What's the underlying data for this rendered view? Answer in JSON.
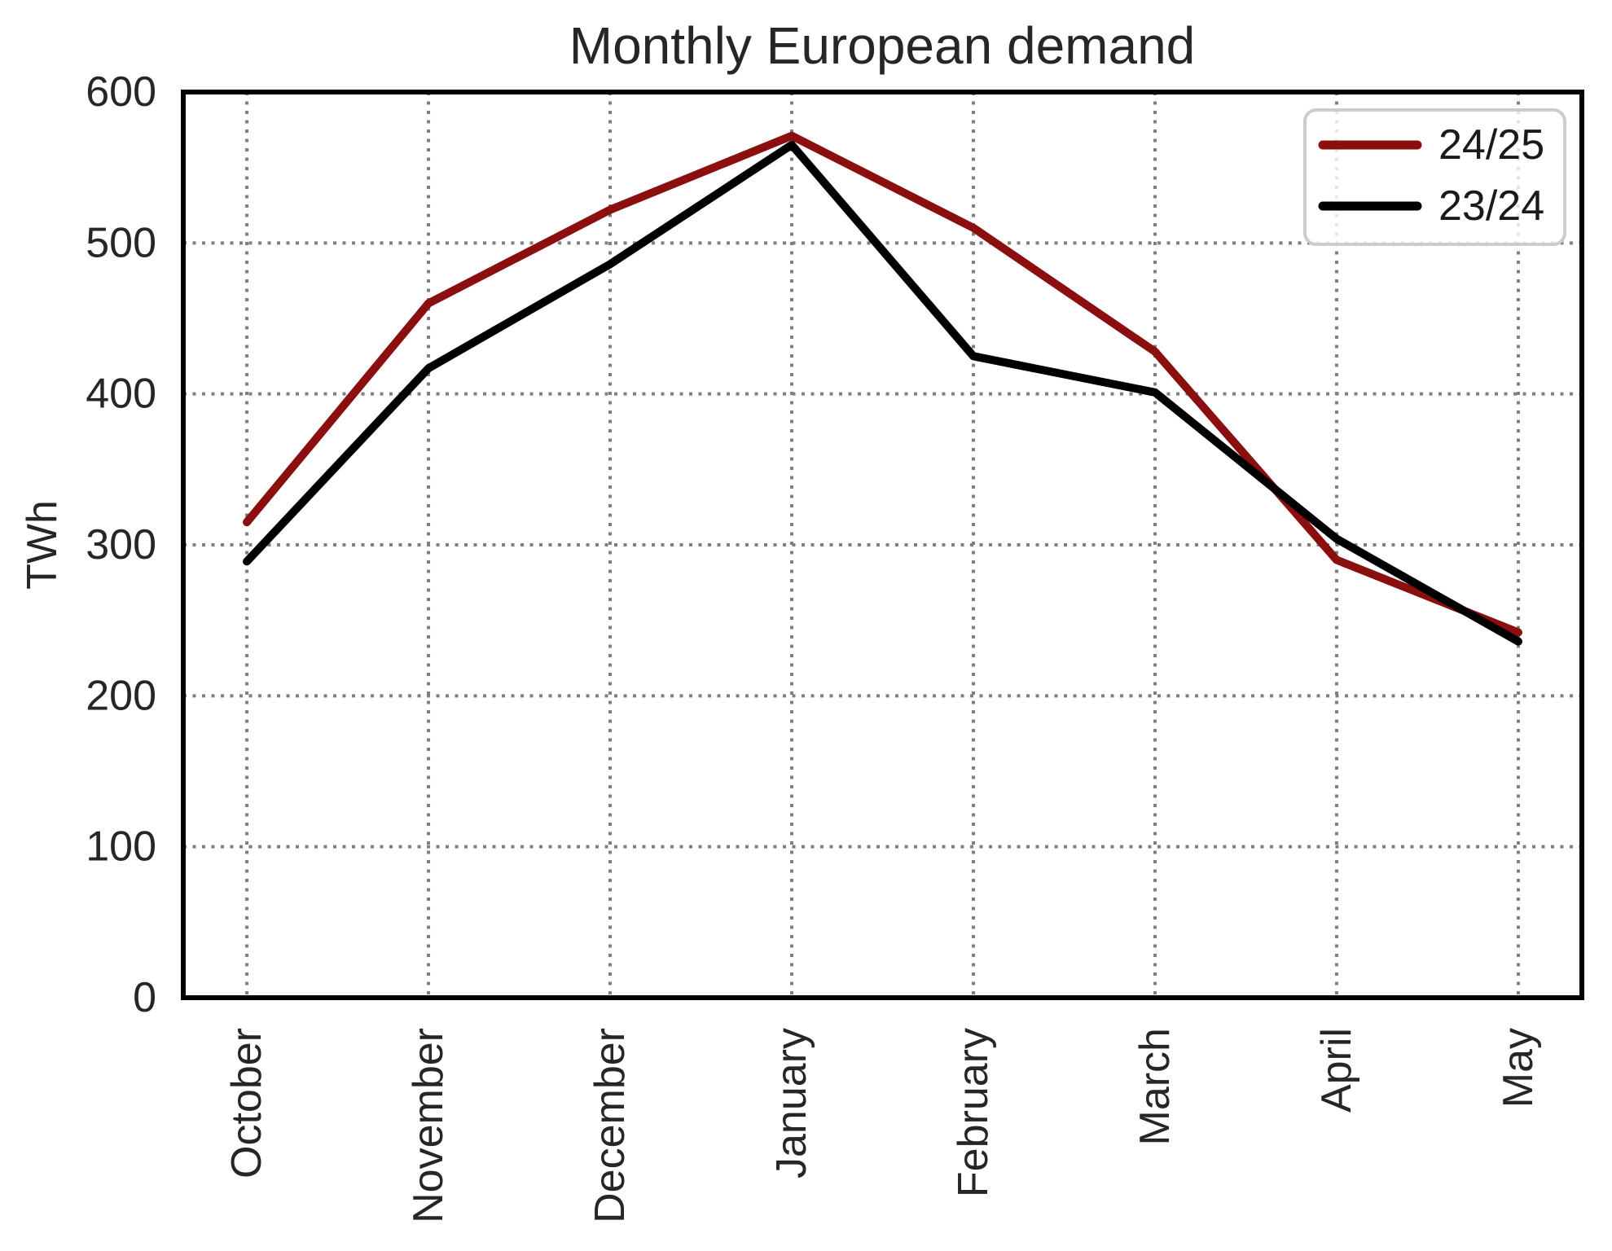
{
  "chart_data": {
    "type": "line",
    "title": "Monthly European demand",
    "xlabel": "",
    "ylabel": "TWh",
    "categories": [
      "October",
      "November",
      "December",
      "January",
      "February",
      "March",
      "April",
      "May"
    ],
    "series": [
      {
        "name": "24/25",
        "color": "#8B0F0F",
        "values": [
          315,
          460,
          522,
          571,
          510,
          428,
          290,
          242
        ]
      },
      {
        "name": "23/24",
        "color": "#000000",
        "values": [
          289,
          417,
          486,
          565,
          425,
          401,
          304,
          236
        ]
      }
    ],
    "ylim": [
      0,
      600
    ],
    "yticks": [
      0,
      100,
      200,
      300,
      400,
      500,
      600
    ],
    "grid": "dotted",
    "legend_position": "upper right",
    "x_tick_rotation_deg": 90
  },
  "colors": {
    "background": "#ffffff",
    "grid": "#7f7f7f",
    "frame": "#000000",
    "text": "#262626",
    "legend_border": "#cccccc"
  }
}
